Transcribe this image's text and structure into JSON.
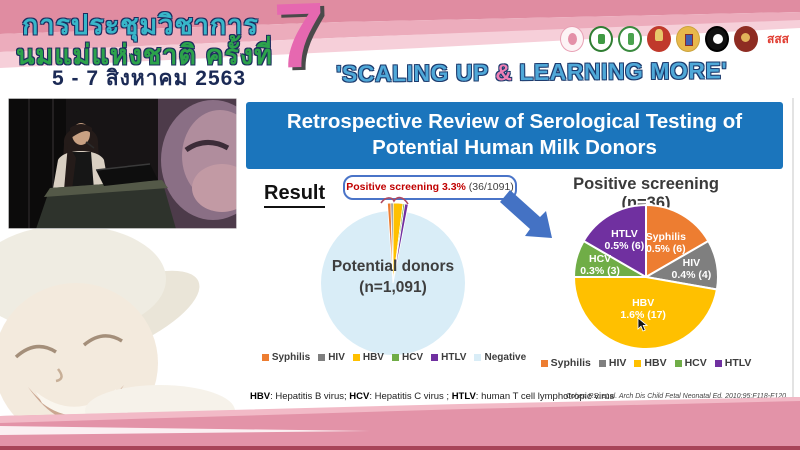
{
  "banner": {
    "title_line1": "การประชุมวิชาการ",
    "title_line2": "นมแม่แห่งชาติ ครั้งที่",
    "date_line": "5 - 7 สิงหาคม 2563",
    "edition_number": "7",
    "slogan": {
      "open": "'SCALING UP ",
      "amp": "&",
      "close": " LEARNING MORE'"
    },
    "sss_logo_text": "สสส",
    "logo_names": [
      "mother-child-foundation",
      "green-health-seal-1",
      "green-health-seal-2",
      "royal-red-gold-emblem",
      "royal-gold-shield-emblem",
      "black-university-seal",
      "dark-red-college-seal",
      "thai-health-promotion-sss"
    ]
  },
  "slide": {
    "title_line1": "Retrospective Review of Serological Testing of",
    "title_line2": "Potential Human Milk Donors",
    "result_label": "Result",
    "callout_highlight": "Positive screening 3.3%",
    "callout_detail": " (36/1091)",
    "footnote": [
      {
        "abbr": "HBV",
        "text": ": Hepatitis B virus; "
      },
      {
        "abbr": "HCV",
        "text": ": Hepatitis C virus ; "
      },
      {
        "abbr": "HTLV",
        "text": ": human T cell lymphotropic virus"
      }
    ],
    "citation": "Cohen RS, et al. Arch Dis Child Fetal Neonatal Ed. 2010;95:F118-F120."
  },
  "chart_data": [
    {
      "type": "pie",
      "title": "Potential donors (n=1,091)",
      "center_label_line1": "Potential donors",
      "center_label_line2": "(n=1,091)",
      "total": 1091,
      "slices": [
        {
          "label": "Syphilis",
          "value": 6,
          "color": "#ED7D31"
        },
        {
          "label": "HIV",
          "value": 4,
          "color": "#7F7F7F"
        },
        {
          "label": "HBV",
          "value": 17,
          "color": "#FFC000"
        },
        {
          "label": "HCV",
          "value": 3,
          "color": "#70AD47"
        },
        {
          "label": "HTLV",
          "value": 6,
          "color": "#7030A0"
        },
        {
          "label": "Negative",
          "value": 1055,
          "color": "#D9EDF7"
        }
      ],
      "legend_position": "bottom",
      "note": "positive slices shown as thin exploded slivers at top"
    },
    {
      "type": "pie",
      "title": "Positive screening (n=36)",
      "total": 36,
      "slices": [
        {
          "label": "Syphilis",
          "value": 6,
          "pct_label": "0.5% (6)",
          "color": "#ED7D31"
        },
        {
          "label": "HIV",
          "value": 4,
          "pct_label": "0.4% (4)",
          "color": "#7F7F7F"
        },
        {
          "label": "HBV",
          "value": 17,
          "pct_label": "1.6% (17)",
          "color": "#FFC000"
        },
        {
          "label": "HCV",
          "value": 3,
          "pct_label": "0.3% (3)",
          "color": "#70AD47"
        },
        {
          "label": "HTLV",
          "value": 6,
          "pct_label": "0.5% (6)",
          "color": "#7030A0"
        }
      ],
      "legend_position": "bottom"
    }
  ],
  "colors": {
    "title_bar_blue": "#1B75BC",
    "arrow_blue": "#4472C4",
    "callout_red": "#C00000",
    "header_pink_dark": "#E08CA1",
    "header_pink_mid": "#ECACBC",
    "header_pink_light": "#F6CFD9",
    "footer_pink": "#E393A8",
    "footer_dark_strip": "#A84458",
    "slogan_blue": "#4FA8D8",
    "slogan_amp_pink": "#EF7FB5",
    "thai_title_teal": "#38B6C9",
    "thai_title_green": "#2CA24B",
    "thai_date_navy": "#1B2A55",
    "seven_pink": "#E668B0"
  }
}
